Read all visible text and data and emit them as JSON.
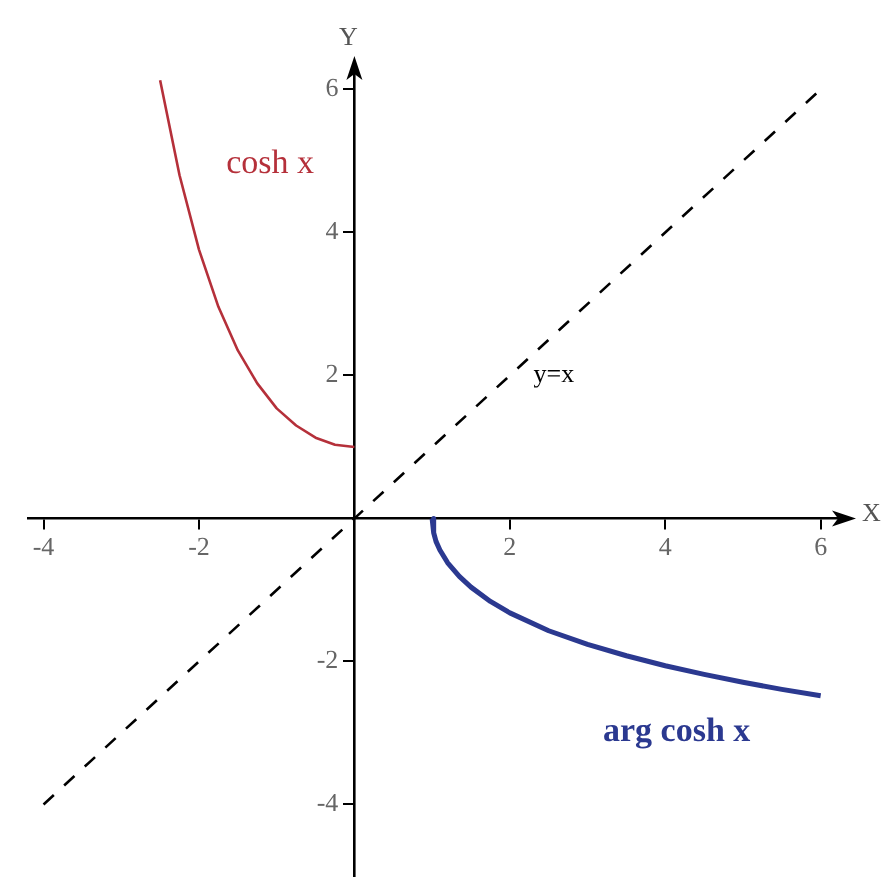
{
  "chart_data": {
    "type": "line",
    "xlabel": "X",
    "ylabel": "Y",
    "xlim": [
      -4.2,
      6.3
    ],
    "ylim": [
      -5,
      6.3
    ],
    "xticks": [
      -4,
      -2,
      2,
      4,
      6
    ],
    "yticks": [
      -4,
      -2,
      2,
      4,
      6
    ],
    "grid": false,
    "legend": false,
    "marker": "none",
    "series": [
      {
        "name": "cosh x",
        "color": "#b5303a",
        "line_style": "solid",
        "x": [
          -2.5,
          -2.25,
          -2,
          -1.75,
          -1.5,
          -1.25,
          -1,
          -0.75,
          -0.5,
          -0.25,
          0
        ],
        "values": [
          6.13,
          4.8,
          3.76,
          2.96,
          2.35,
          1.89,
          1.54,
          1.3,
          1.13,
          1.03,
          1
        ]
      },
      {
        "name": "arg cosh x",
        "color": "#2b3990",
        "line_style": "solid",
        "x": [
          1,
          1.02,
          1.05,
          1.1,
          1.2,
          1.35,
          1.5,
          1.75,
          2,
          2.5,
          3,
          3.5,
          4,
          4.5,
          5,
          5.5,
          6
        ],
        "values": [
          0,
          -0.2,
          -0.32,
          -0.44,
          -0.62,
          -0.81,
          -0.96,
          -1.16,
          -1.32,
          -1.57,
          -1.76,
          -1.92,
          -2.06,
          -2.18,
          -2.29,
          -2.39,
          -2.48
        ]
      },
      {
        "name": "y=x",
        "color": "#000000",
        "line_style": "dashed",
        "x": [
          -4,
          6
        ],
        "values": [
          -4,
          6
        ]
      }
    ]
  }
}
